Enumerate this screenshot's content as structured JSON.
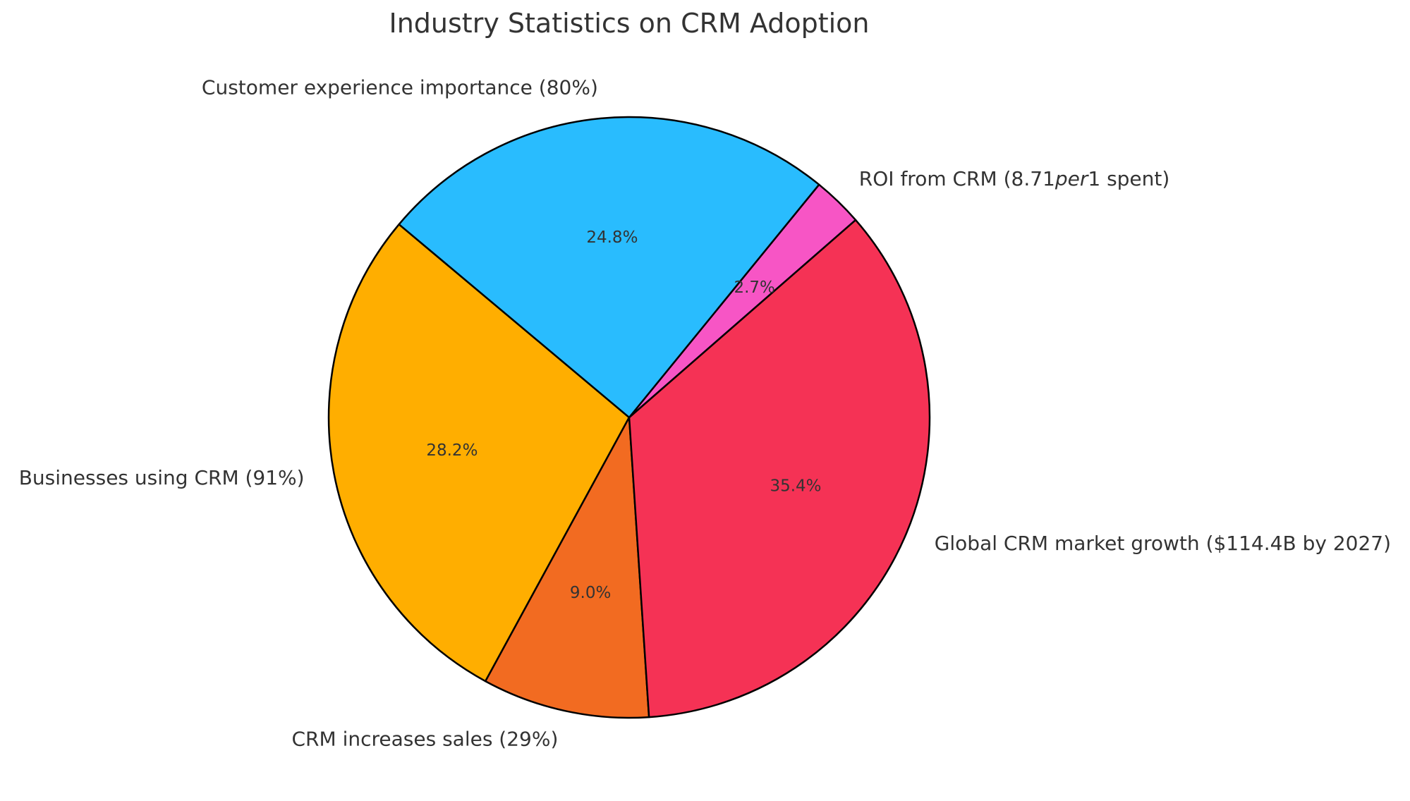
{
  "chart_data": {
    "type": "pie",
    "title": "Industry Statistics on CRM Adoption",
    "slices": [
      {
        "label": "Businesses using CRM (91%)",
        "value": 28.2,
        "pct_label": "28.2%",
        "color": "#FFAE00"
      },
      {
        "label": "CRM increases sales (29%)",
        "value": 9.0,
        "pct_label": "9.0%",
        "color": "#F26B21"
      },
      {
        "label": "Global CRM market growth ($114.4B by 2027)",
        "value": 35.4,
        "pct_label": "35.4%",
        "color": "#F53255"
      },
      {
        "label": "ROI from CRM (8.71",
        "label_italic": "per",
        "label_end": "1 spent)",
        "value": 2.7,
        "pct_label": "2.7%",
        "color": "#F755C5"
      },
      {
        "label": "Customer experience importance (80%)",
        "value": 24.8,
        "pct_label": "24.8%",
        "color": "#29BCFE"
      }
    ],
    "start_angle_deg": 140,
    "direction": "counterclockwise"
  }
}
